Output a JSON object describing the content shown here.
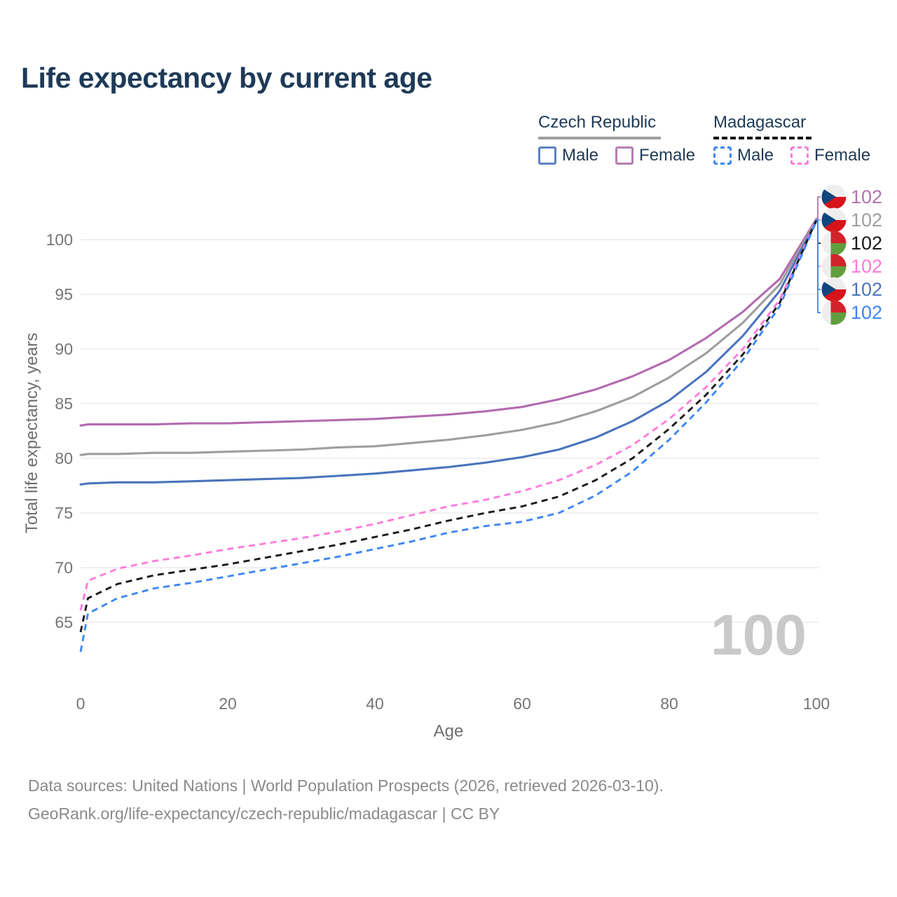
{
  "title": "Life expectancy by current age",
  "legend": {
    "groups": [
      {
        "name": "Czech Republic",
        "style": "solid",
        "underline_color": "#9e9e9e",
        "items": [
          {
            "label": "Male",
            "color": "#5b84c4",
            "dashed": false
          },
          {
            "label": "Female",
            "color": "#b47fb2",
            "dashed": false
          }
        ]
      },
      {
        "name": "Madagascar",
        "style": "dashed",
        "underline_color": "#111111",
        "items": [
          {
            "label": "Male",
            "color": "#3d87f5",
            "dashed": true
          },
          {
            "label": "Female",
            "color": "#ff7bdb",
            "dashed": true
          }
        ]
      }
    ]
  },
  "chart_data": {
    "type": "line",
    "title": "Life expectancy by current age",
    "xlabel": "Age",
    "ylabel": "Total life expectancy, years",
    "xlim": [
      0,
      100
    ],
    "ylim": [
      62,
      103
    ],
    "xticks": [
      0,
      20,
      40,
      60,
      80,
      100
    ],
    "yticks": [
      65,
      70,
      75,
      80,
      85,
      90,
      95,
      100
    ],
    "grid": "horizontal-only",
    "legend_position": "top-right",
    "watermark": "100",
    "x": [
      0,
      1,
      5,
      10,
      15,
      20,
      25,
      30,
      35,
      40,
      45,
      50,
      55,
      60,
      65,
      70,
      75,
      80,
      85,
      90,
      95,
      100
    ],
    "series": [
      {
        "name": "Czech Republic Female",
        "country": "czech-republic",
        "sex": "female",
        "color": "#b36ab0",
        "dashed": false,
        "values": [
          83.0,
          83.1,
          83.1,
          83.1,
          83.2,
          83.2,
          83.3,
          83.4,
          83.5,
          83.6,
          83.8,
          84.0,
          84.3,
          84.7,
          85.4,
          86.3,
          87.5,
          89.0,
          91.0,
          93.4,
          96.4,
          101.9
        ]
      },
      {
        "name": "Czech Republic Both sexes",
        "country": "czech-republic",
        "sex": "both",
        "color": "#9e9e9e",
        "dashed": false,
        "values": [
          80.3,
          80.4,
          80.4,
          80.5,
          80.5,
          80.6,
          80.7,
          80.8,
          81.0,
          81.1,
          81.4,
          81.7,
          82.1,
          82.6,
          83.3,
          84.3,
          85.6,
          87.4,
          89.6,
          92.4,
          95.9,
          101.8
        ]
      },
      {
        "name": "Czech Republic Male",
        "country": "czech-republic",
        "sex": "male",
        "color": "#4a74bc",
        "dashed": false,
        "values": [
          77.6,
          77.7,
          77.8,
          77.8,
          77.9,
          78.0,
          78.1,
          78.2,
          78.4,
          78.6,
          78.9,
          79.2,
          79.6,
          80.1,
          80.8,
          81.9,
          83.4,
          85.3,
          87.9,
          91.2,
          95.3,
          101.7
        ]
      },
      {
        "name": "Madagascar Female",
        "country": "madagascar",
        "sex": "female",
        "color": "#ff7bdb",
        "dashed": true,
        "values": [
          66.1,
          68.8,
          69.9,
          70.6,
          71.1,
          71.7,
          72.2,
          72.7,
          73.3,
          74.0,
          74.8,
          75.6,
          76.2,
          77.0,
          78.0,
          79.4,
          81.2,
          83.6,
          86.5,
          90.0,
          94.5,
          101.8
        ]
      },
      {
        "name": "Madagascar Both sexes",
        "country": "madagascar",
        "sex": "both",
        "color": "#1a1a1a",
        "dashed": true,
        "values": [
          64.1,
          67.2,
          68.5,
          69.3,
          69.8,
          70.3,
          70.9,
          71.5,
          72.1,
          72.8,
          73.5,
          74.3,
          75.0,
          75.6,
          76.5,
          78.0,
          80.0,
          82.7,
          85.8,
          89.5,
          94.2,
          101.8
        ]
      },
      {
        "name": "Madagascar Male",
        "country": "madagascar",
        "sex": "male",
        "color": "#3d87f5",
        "dashed": true,
        "values": [
          62.3,
          65.8,
          67.2,
          68.1,
          68.6,
          69.2,
          69.8,
          70.4,
          71.0,
          71.7,
          72.4,
          73.2,
          73.8,
          74.2,
          75.0,
          76.6,
          78.8,
          81.7,
          85.1,
          89.0,
          93.9,
          101.7
        ]
      }
    ],
    "end_labels": [
      {
        "text": "102",
        "flag": "czech-republic",
        "color": "#b671ae",
        "series": "Czech Republic Female"
      },
      {
        "text": "102",
        "flag": "czech-republic",
        "color": "#9e9e9e",
        "series": "Czech Republic Both sexes"
      },
      {
        "text": "102",
        "flag": "madagascar",
        "color": "#1a1a1a",
        "series": "Madagascar Both sexes"
      },
      {
        "text": "102",
        "flag": "madagascar",
        "color": "#ff7bdb",
        "series": "Madagascar Female"
      },
      {
        "text": "102",
        "flag": "czech-republic",
        "color": "#4a74bc",
        "series": "Czech Republic Male"
      },
      {
        "text": "102",
        "flag": "madagascar",
        "color": "#3d87f5",
        "series": "Madagascar Male"
      }
    ]
  },
  "footer": {
    "line1": "Data sources: United Nations | World Population Prospects (2026, retrieved 2026-03-10).",
    "line2": "GeoRank.org/life-expectancy/czech-republic/madagascar | CC BY"
  }
}
